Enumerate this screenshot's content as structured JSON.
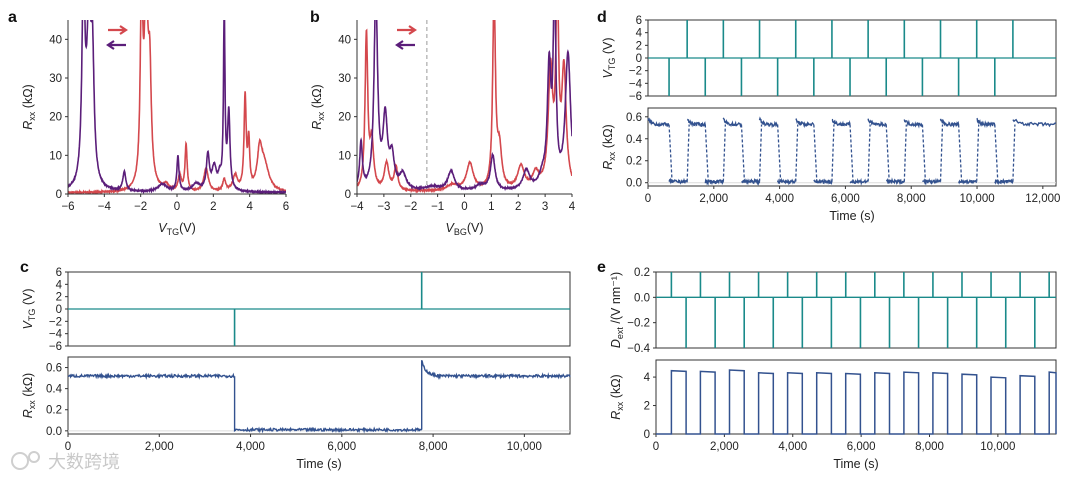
{
  "colors": {
    "purple": "#5b1e7a",
    "red": "#d4484d",
    "teal": "#1a8a8a",
    "navy": "#33528f",
    "axis": "#333333",
    "grid": "#dcdcdc",
    "dash": "#9a9a9a"
  },
  "watermark": "大数跨境",
  "chart_data": [
    {
      "panel": "a",
      "type": "line",
      "xlabel_main": "V",
      "xlabel_sub": "TG",
      "xlabel_unit": "(V)",
      "ylabel_main": "R",
      "ylabel_sub": "xx",
      "ylabel_unit": "(kΩ)",
      "xlim": [
        -6,
        6
      ],
      "ylim": [
        0,
        45
      ],
      "xticks": [
        -6,
        -4,
        -2,
        0,
        2,
        4,
        6
      ],
      "yticks": [
        0,
        10,
        20,
        30,
        40
      ],
      "legend": [
        "forward sweep",
        "backward sweep"
      ],
      "series": [
        {
          "name": "forward sweep",
          "color": "#d4484d",
          "baseline": 0.3,
          "peaks": [
            [
              -1.95,
              50,
              0.08
            ],
            [
              -1.7,
              48,
              0.12
            ],
            [
              -1.5,
              26,
              0.1
            ],
            [
              -0.6,
              1.5,
              0.2
            ],
            [
              0.5,
              12,
              0.07
            ],
            [
              0.15,
              4,
              0.1
            ],
            [
              1.6,
              6,
              0.15
            ],
            [
              2.6,
              3,
              0.1
            ],
            [
              3.2,
              4,
              0.15
            ],
            [
              3.75,
              24,
              0.07
            ],
            [
              3.95,
              12,
              0.06
            ],
            [
              4.55,
              9,
              0.15
            ],
            [
              4.8,
              7,
              0.3
            ]
          ]
        },
        {
          "name": "backward sweep",
          "color": "#5b1e7a",
          "baseline": 0.4,
          "peaks": [
            [
              -5.15,
              50,
              0.1
            ],
            [
              -4.85,
              40,
              0.15
            ],
            [
              -4.65,
              28,
              0.1
            ],
            [
              -2.9,
              5,
              0.1
            ],
            [
              -0.8,
              2,
              0.3
            ],
            [
              0.05,
              9,
              0.07
            ],
            [
              1.05,
              2,
              0.25
            ],
            [
              1.7,
              9,
              0.1
            ],
            [
              2.05,
              6,
              0.15
            ],
            [
              2.35,
              3,
              0.1
            ],
            [
              2.6,
              45,
              0.05
            ],
            [
              2.85,
              20,
              0.08
            ]
          ]
        }
      ]
    },
    {
      "panel": "b",
      "type": "line",
      "xlabel_main": "V",
      "xlabel_sub": "BG",
      "xlabel_unit": "(V)",
      "ylabel_main": "R",
      "ylabel_sub": "xx",
      "ylabel_unit": "(kΩ)",
      "xlim": [
        -4,
        4
      ],
      "ylim": [
        0,
        45
      ],
      "xticks": [
        -4,
        -3,
        -2,
        -1,
        0,
        1,
        2,
        3,
        4
      ],
      "yticks": [
        0,
        10,
        20,
        30,
        40
      ],
      "legend": [
        "forward sweep",
        "backward sweep"
      ],
      "vline_x": -1.4,
      "series": [
        {
          "name": "forward sweep",
          "color": "#d4484d",
          "baseline": 0.6,
          "peaks": [
            [
              -3.65,
              40,
              0.06
            ],
            [
              -3.45,
              12,
              0.08
            ],
            [
              -2.9,
              7,
              0.1
            ],
            [
              -2.55,
              6,
              0.08
            ],
            [
              -0.45,
              1.5,
              0.25
            ],
            [
              0.2,
              7,
              0.15
            ],
            [
              1.1,
              50,
              0.06
            ],
            [
              1.3,
              10,
              0.1
            ],
            [
              2.1,
              6,
              0.15
            ],
            [
              2.65,
              4,
              0.15
            ],
            [
              3.2,
              30,
              0.1
            ],
            [
              3.45,
              50,
              0.06
            ],
            [
              3.7,
              30,
              0.1
            ]
          ]
        },
        {
          "name": "backward sweep",
          "color": "#5b1e7a",
          "baseline": 0.6,
          "peaks": [
            [
              -3.85,
              12,
              0.06
            ],
            [
              -3.3,
              50,
              0.08
            ],
            [
              -2.95,
              18,
              0.1
            ],
            [
              -2.7,
              8,
              0.1
            ],
            [
              -2.3,
              4,
              0.15
            ],
            [
              -1.2,
              1,
              0.3
            ],
            [
              -0.5,
              5,
              0.15
            ],
            [
              0.6,
              1.5,
              0.2
            ],
            [
              1.05,
              9,
              0.1
            ],
            [
              2.3,
              5,
              0.15
            ],
            [
              2.9,
              3,
              0.15
            ],
            [
              3.15,
              30,
              0.08
            ],
            [
              3.35,
              50,
              0.06
            ],
            [
              3.85,
              35,
              0.12
            ]
          ]
        }
      ]
    },
    {
      "panel": "c",
      "type": "line",
      "xlabel": "Time (s)",
      "xlim": [
        0,
        11000
      ],
      "xticks": [
        0,
        2000,
        4000,
        6000,
        8000,
        10000
      ],
      "xtick_labels": [
        "0",
        "2,000",
        "4,000",
        "6,000",
        "8,000",
        "10,000"
      ],
      "top": {
        "ylabel_main": "V",
        "ylabel_sub": "TG",
        "ylabel_unit": "(V)",
        "ylim": [
          -6,
          6
        ],
        "yticks": [
          -6,
          -4,
          -2,
          0,
          2,
          4,
          6
        ],
        "pulses": [
          [
            3650,
            -6
          ],
          [
            7750,
            6
          ]
        ]
      },
      "bottom": {
        "ylabel_main": "R",
        "ylabel_sub": "xx",
        "ylabel_unit": "(kΩ)",
        "ylim": [
          -0.03,
          0.7
        ],
        "yticks": [
          0.0,
          0.2,
          0.4,
          0.6
        ],
        "ytick_labels": [
          "0.0",
          "0.2",
          "0.4",
          "0.6"
        ],
        "segments": [
          {
            "from": 0,
            "to": 3650,
            "level": 0.52
          },
          {
            "from": 3650,
            "to": 7750,
            "level": 0.01
          },
          {
            "from": 7750,
            "to": 11000,
            "level": 0.52
          }
        ]
      }
    },
    {
      "panel": "d",
      "type": "line",
      "xlabel": "Time (s)",
      "xlim": [
        0,
        12400
      ],
      "xticks": [
        0,
        2000,
        4000,
        6000,
        8000,
        10000,
        12000
      ],
      "xtick_labels": [
        "0",
        "2,000",
        "4,000",
        "6,000",
        "8,000",
        "10,000",
        "12,000"
      ],
      "top": {
        "ylabel_main": "V",
        "ylabel_sub": "TG",
        "ylabel_unit": "(V)",
        "ylim": [
          -6,
          6
        ],
        "yticks": [
          -6,
          -4,
          -2,
          0,
          2,
          4,
          6
        ],
        "period": 1100,
        "first_neg": 640,
        "first_pos": 1190,
        "cycles": 10
      },
      "bottom": {
        "ylabel_main": "R",
        "ylabel_sub": "xx",
        "ylabel_unit": "(kΩ)",
        "ylim": [
          -0.03,
          0.68
        ],
        "yticks": [
          0.0,
          0.2,
          0.4,
          0.6
        ],
        "ytick_labels": [
          "0.0",
          "0.2",
          "0.4",
          "0.6"
        ],
        "high": 0.53,
        "low": 0.01,
        "period": 1100,
        "first_drop": 640,
        "rise_offset": 550,
        "cycles": 10
      }
    },
    {
      "panel": "e",
      "type": "line",
      "xlabel": "Time (s)",
      "xlim": [
        0,
        11700
      ],
      "xticks": [
        0,
        2000,
        4000,
        6000,
        8000,
        10000
      ],
      "xtick_labels": [
        "0",
        "2,000",
        "4,000",
        "6,000",
        "8,000",
        "10,000"
      ],
      "top": {
        "ylabel_main": "D",
        "ylabel_sub": "ext",
        "ylabel_unit": "/(V nm⁻¹)",
        "ylim": [
          -0.4,
          0.2
        ],
        "yticks": [
          -0.4,
          -0.2,
          0.0,
          0.2
        ],
        "ytick_labels": [
          "-0.4",
          "-0.2",
          "0.0",
          "0.2"
        ],
        "period": 850,
        "first_pos": 450,
        "first_neg": 880,
        "cycles": 14,
        "pos": 0.2,
        "neg": -0.4
      },
      "bottom": {
        "ylabel_main": "R",
        "ylabel_sub": "xx",
        "ylabel_unit": "(kΩ)",
        "ylim": [
          0,
          5.2
        ],
        "yticks": [
          0,
          2,
          4
        ],
        "ytick_labels": [
          "0",
          "2",
          "4"
        ],
        "highs": [
          4.45,
          4.4,
          4.5,
          4.3,
          4.3,
          4.3,
          4.25,
          4.3,
          4.35,
          4.3,
          4.2,
          4.0,
          4.1,
          4.35
        ],
        "low": 0.0,
        "period": 850,
        "first_rise": 450,
        "fall_offset": 430,
        "cycles": 14
      }
    }
  ]
}
